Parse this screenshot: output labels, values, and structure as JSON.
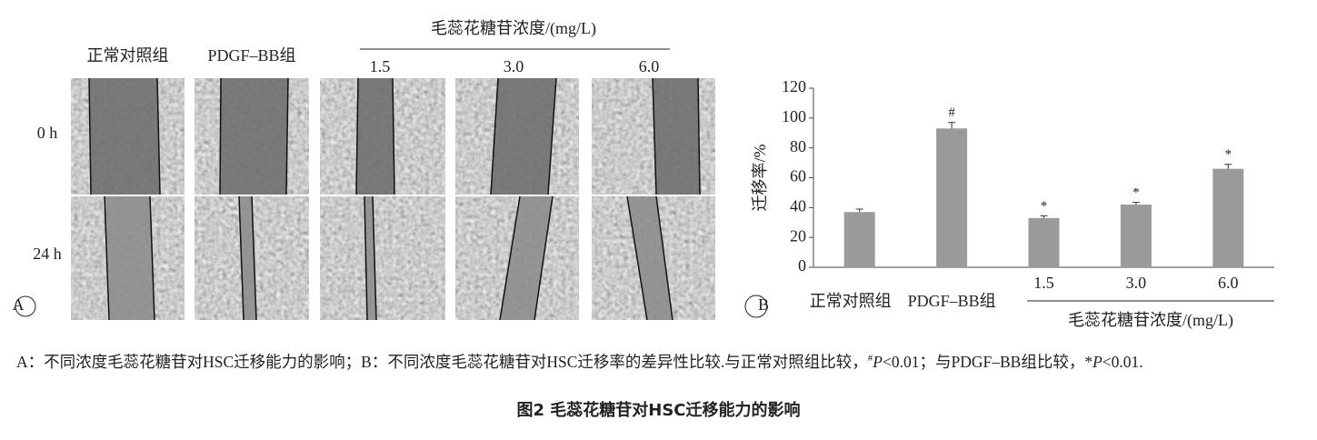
{
  "panel_a": {
    "label": "A",
    "columns": [
      "正常对照组",
      "PDGF–BB组"
    ],
    "group_label": "毛蕊花糖苷浓度/(mg/L)",
    "group_columns": [
      "1.5",
      "3.0",
      "6.0"
    ],
    "rows": [
      "0 h",
      "24 h"
    ]
  },
  "chart_data": {
    "type": "bar",
    "panel_label": "B",
    "y_label": "迁移率/%",
    "categories": [
      "正常对照组",
      "PDGF–BB组",
      "1.5",
      "3.0",
      "6.0"
    ],
    "group_label": "毛蕊花糖苷浓度/(mg/L)",
    "values": [
      37,
      93,
      33,
      42,
      66
    ],
    "errors": [
      2,
      4,
      1.5,
      1.5,
      3
    ],
    "annotations": [
      null,
      "#",
      "*",
      "*",
      "*"
    ],
    "color": "#9a9a9a",
    "ylim": [
      0,
      120
    ],
    "yticks": [
      0,
      20,
      40,
      60,
      80,
      100,
      120
    ]
  },
  "caption": {
    "segments": [
      "A：不同浓度毛蕊花糖苷对HSC迁移能力的影响；B：不同浓度毛蕊花糖苷对HSC迁移率的差异性比较.与正常对照组比较，",
      "#",
      "P",
      "<0.01；与PDGF–BB组比较，*",
      "P",
      "<0.01."
    ],
    "title": "图2  毛蕊花糖苷对HSC迁移能力的影响"
  }
}
